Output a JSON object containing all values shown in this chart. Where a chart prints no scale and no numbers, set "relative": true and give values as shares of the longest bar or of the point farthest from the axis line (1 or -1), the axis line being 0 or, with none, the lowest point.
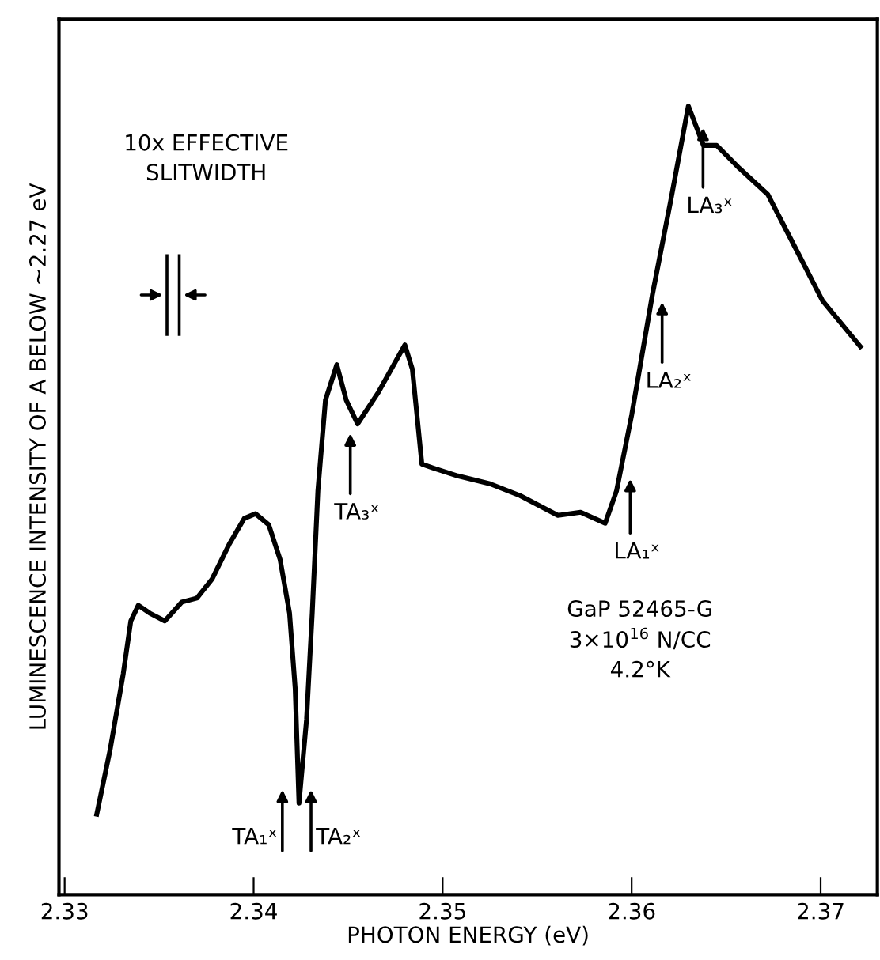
{
  "chart_data": {
    "type": "line",
    "relative": true,
    "xlabel": "PHOTON ENERGY (eV)",
    "ylabel": "LUMINESCENCE INTENSITY OF A BELOW ~2.27 eV",
    "xlim": [
      2.3297,
      2.373
    ],
    "xticks": [
      2.33,
      2.34,
      2.35,
      2.36,
      2.37
    ],
    "grid": false,
    "legend": false,
    "marker": "none",
    "line_style": "solid",
    "series": [
      {
        "color": "#000000",
        "x": [
          2.3317,
          2.3324,
          2.3331,
          2.3335,
          2.3339,
          2.3345,
          2.3353,
          2.3362,
          2.337,
          2.3378,
          2.3387,
          2.3395,
          2.3401,
          2.3408,
          2.3414,
          2.3419,
          2.3422,
          2.3424,
          2.3428,
          2.3431,
          2.3434,
          2.3438,
          2.3444,
          2.3449,
          2.3455,
          2.3466,
          2.348,
          2.3484,
          2.3489,
          2.3495,
          2.3508,
          2.3525,
          2.3541,
          2.3561,
          2.3573,
          2.3586,
          2.3592,
          2.36,
          2.3611,
          2.3621,
          2.363,
          2.3638,
          2.3645,
          2.3657,
          2.3672,
          2.3689,
          2.3701,
          2.3721
        ],
        "values": [
          0.102,
          0.183,
          0.28,
          0.347,
          0.367,
          0.357,
          0.347,
          0.371,
          0.376,
          0.4,
          0.444,
          0.477,
          0.483,
          0.469,
          0.425,
          0.357,
          0.261,
          0.116,
          0.222,
          0.357,
          0.512,
          0.627,
          0.672,
          0.627,
          0.597,
          0.637,
          0.697,
          0.666,
          0.546,
          0.541,
          0.531,
          0.521,
          0.506,
          0.481,
          0.485,
          0.471,
          0.512,
          0.608,
          0.761,
          0.884,
          1.0,
          0.95,
          0.95,
          0.921,
          0.888,
          0.809,
          0.753,
          0.695
        ]
      }
    ],
    "annotations": [
      "10x EFFECTIVE\nSLITWIDTH",
      "GaP 52465-G\n3×10$^{16}$ N/CC\n4.2°K",
      "TA₁ˣ",
      "TA₂ˣ",
      "TA₃ˣ",
      "LA₁ˣ",
      "LA₂ˣ",
      "LA₃ˣ"
    ]
  }
}
